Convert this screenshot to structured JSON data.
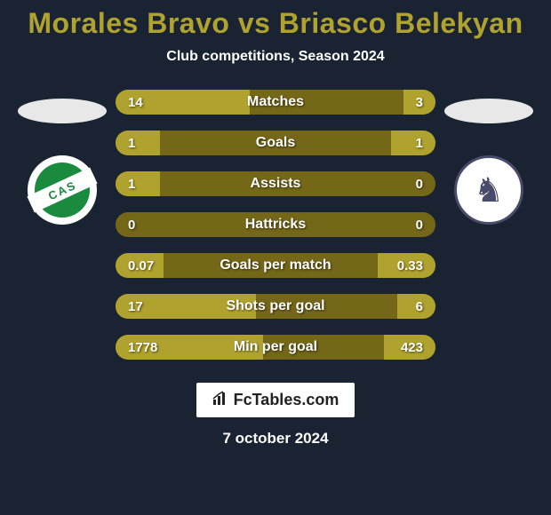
{
  "title": "Morales Bravo vs Briasco Belekyan",
  "subtitle": "Club competitions, Season 2024",
  "colors": {
    "background": "#1a2332",
    "title": "#b0a22e",
    "bar_fill": "#b0a22e",
    "bar_bg": "#746718",
    "text": "#ffffff",
    "crest_left_bg": "#1a8a3f",
    "crest_left_text": "CAS",
    "crest_right_border": "#4a4a6a"
  },
  "bar_style": {
    "height": 28,
    "radius": 14,
    "gap": 18,
    "label_fontsize": 16,
    "value_fontsize": 15
  },
  "bars": [
    {
      "label": "Matches",
      "left": "14",
      "right": "3",
      "left_pct": 42,
      "right_pct": 10
    },
    {
      "label": "Goals",
      "left": "1",
      "right": "1",
      "left_pct": 14,
      "right_pct": 14
    },
    {
      "label": "Assists",
      "left": "1",
      "right": "0",
      "left_pct": 14,
      "right_pct": 0
    },
    {
      "label": "Hattricks",
      "left": "0",
      "right": "0",
      "left_pct": 0,
      "right_pct": 0
    },
    {
      "label": "Goals per match",
      "left": "0.07",
      "right": "0.33",
      "left_pct": 15,
      "right_pct": 18
    },
    {
      "label": "Shots per goal",
      "left": "17",
      "right": "6",
      "left_pct": 44,
      "right_pct": 12
    },
    {
      "label": "Min per goal",
      "left": "1778",
      "right": "423",
      "left_pct": 46,
      "right_pct": 16
    }
  ],
  "footer": {
    "logo_text": "FcTables.com",
    "date": "7 october 2024"
  }
}
